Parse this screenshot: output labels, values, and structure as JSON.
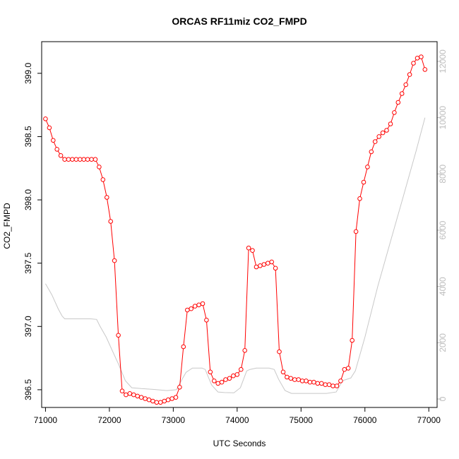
{
  "chart_data": {
    "type": "line",
    "title": "ORCAS RF11miz CO2_FMPD",
    "xlabel": "UTC Seconds",
    "ylabel": "CO2_FMPD",
    "xlim": [
      70940,
      77130
    ],
    "ylim": [
      396.36,
      399.25
    ],
    "y2lim": [
      -300,
      12700
    ],
    "x_ticks": [
      "71000",
      "72000",
      "73000",
      "74000",
      "75000",
      "76000",
      "77000"
    ],
    "y_ticks": [
      "396.5",
      "397.0",
      "397.5",
      "398.0",
      "398.5",
      "399.0"
    ],
    "y2_ticks": [
      "0",
      "2000",
      "4000",
      "6000",
      "8000",
      "10000",
      "12000"
    ],
    "grid": false,
    "series": [
      {
        "color": "#ff0000",
        "style": "line-with-open-circles",
        "axis": "left",
        "points": [
          [
            71000,
            398.64
          ],
          [
            71060,
            398.57
          ],
          [
            71120,
            398.47
          ],
          [
            71180,
            398.4
          ],
          [
            71240,
            398.35
          ],
          [
            71300,
            398.32
          ],
          [
            71360,
            398.32
          ],
          [
            71420,
            398.32
          ],
          [
            71480,
            398.32
          ],
          [
            71540,
            398.32
          ],
          [
            71600,
            398.32
          ],
          [
            71660,
            398.32
          ],
          [
            71720,
            398.32
          ],
          [
            71780,
            398.32
          ],
          [
            71840,
            398.26
          ],
          [
            71900,
            398.16
          ],
          [
            71960,
            398.02
          ],
          [
            72020,
            397.83
          ],
          [
            72080,
            397.52
          ],
          [
            72140,
            396.93
          ],
          [
            72200,
            396.49
          ],
          [
            72260,
            396.46
          ],
          [
            72320,
            396.47
          ],
          [
            72380,
            396.46
          ],
          [
            72440,
            396.45
          ],
          [
            72500,
            396.44
          ],
          [
            72560,
            396.43
          ],
          [
            72620,
            396.42
          ],
          [
            72680,
            396.41
          ],
          [
            72740,
            396.4
          ],
          [
            72800,
            396.4
          ],
          [
            72860,
            396.41
          ],
          [
            72920,
            396.42
          ],
          [
            72980,
            396.43
          ],
          [
            73040,
            396.44
          ],
          [
            73100,
            396.52
          ],
          [
            73160,
            396.84
          ],
          [
            73220,
            397.13
          ],
          [
            73280,
            397.14
          ],
          [
            73340,
            397.16
          ],
          [
            73400,
            397.17
          ],
          [
            73460,
            397.18
          ],
          [
            73520,
            397.05
          ],
          [
            73580,
            396.64
          ],
          [
            73640,
            396.57
          ],
          [
            73700,
            396.55
          ],
          [
            73760,
            396.56
          ],
          [
            73820,
            396.58
          ],
          [
            73880,
            396.59
          ],
          [
            73940,
            396.61
          ],
          [
            74000,
            396.62
          ],
          [
            74060,
            396.66
          ],
          [
            74120,
            396.81
          ],
          [
            74180,
            397.62
          ],
          [
            74240,
            397.6
          ],
          [
            74300,
            397.47
          ],
          [
            74360,
            397.48
          ],
          [
            74420,
            397.49
          ],
          [
            74480,
            397.5
          ],
          [
            74540,
            397.51
          ],
          [
            74600,
            397.46
          ],
          [
            74660,
            396.8
          ],
          [
            74720,
            396.64
          ],
          [
            74780,
            396.6
          ],
          [
            74840,
            396.59
          ],
          [
            74900,
            396.58
          ],
          [
            74960,
            396.58
          ],
          [
            75020,
            396.57
          ],
          [
            75080,
            396.57
          ],
          [
            75140,
            396.56
          ],
          [
            75200,
            396.56
          ],
          [
            75260,
            396.55
          ],
          [
            75320,
            396.55
          ],
          [
            75380,
            396.54
          ],
          [
            75440,
            396.54
          ],
          [
            75500,
            396.53
          ],
          [
            75560,
            396.53
          ],
          [
            75620,
            396.57
          ],
          [
            75680,
            396.66
          ],
          [
            75740,
            396.67
          ],
          [
            75800,
            396.89
          ],
          [
            75860,
            397.75
          ],
          [
            75920,
            398.01
          ],
          [
            75980,
            398.14
          ],
          [
            76040,
            398.26
          ],
          [
            76100,
            398.38
          ],
          [
            76160,
            398.46
          ],
          [
            76220,
            398.5
          ],
          [
            76280,
            398.53
          ],
          [
            76340,
            398.55
          ],
          [
            76400,
            398.6
          ],
          [
            76460,
            398.69
          ],
          [
            76520,
            398.77
          ],
          [
            76580,
            398.84
          ],
          [
            76640,
            398.91
          ],
          [
            76700,
            398.99
          ],
          [
            76760,
            399.08
          ],
          [
            76820,
            399.12
          ],
          [
            76880,
            399.13
          ],
          [
            76940,
            399.03
          ]
        ]
      },
      {
        "color": "#c8c8c8",
        "style": "line",
        "axis": "right",
        "points": [
          [
            71000,
            4100
          ],
          [
            71100,
            3700
          ],
          [
            71200,
            3200
          ],
          [
            71260,
            2950
          ],
          [
            71300,
            2850
          ],
          [
            71500,
            2850
          ],
          [
            71700,
            2850
          ],
          [
            71800,
            2830
          ],
          [
            71850,
            2600
          ],
          [
            71950,
            2200
          ],
          [
            72050,
            1700
          ],
          [
            72150,
            1200
          ],
          [
            72250,
            650
          ],
          [
            72350,
            400
          ],
          [
            72500,
            370
          ],
          [
            72700,
            340
          ],
          [
            72900,
            300
          ],
          [
            73050,
            330
          ],
          [
            73150,
            750
          ],
          [
            73200,
            950
          ],
          [
            73300,
            1100
          ],
          [
            73450,
            1100
          ],
          [
            73500,
            1050
          ],
          [
            73600,
            500
          ],
          [
            73700,
            250
          ],
          [
            73800,
            230
          ],
          [
            73950,
            220
          ],
          [
            74050,
            400
          ],
          [
            74150,
            1000
          ],
          [
            74200,
            1050
          ],
          [
            74300,
            1100
          ],
          [
            74500,
            1100
          ],
          [
            74580,
            1050
          ],
          [
            74650,
            700
          ],
          [
            74750,
            300
          ],
          [
            74850,
            200
          ],
          [
            75100,
            200
          ],
          [
            75400,
            200
          ],
          [
            75550,
            250
          ],
          [
            75650,
            650
          ],
          [
            75780,
            750
          ],
          [
            75850,
            1000
          ],
          [
            76000,
            2200
          ],
          [
            76200,
            4000
          ],
          [
            76400,
            5600
          ],
          [
            76600,
            7200
          ],
          [
            76800,
            8800
          ],
          [
            76940,
            10000
          ]
        ]
      }
    ]
  }
}
